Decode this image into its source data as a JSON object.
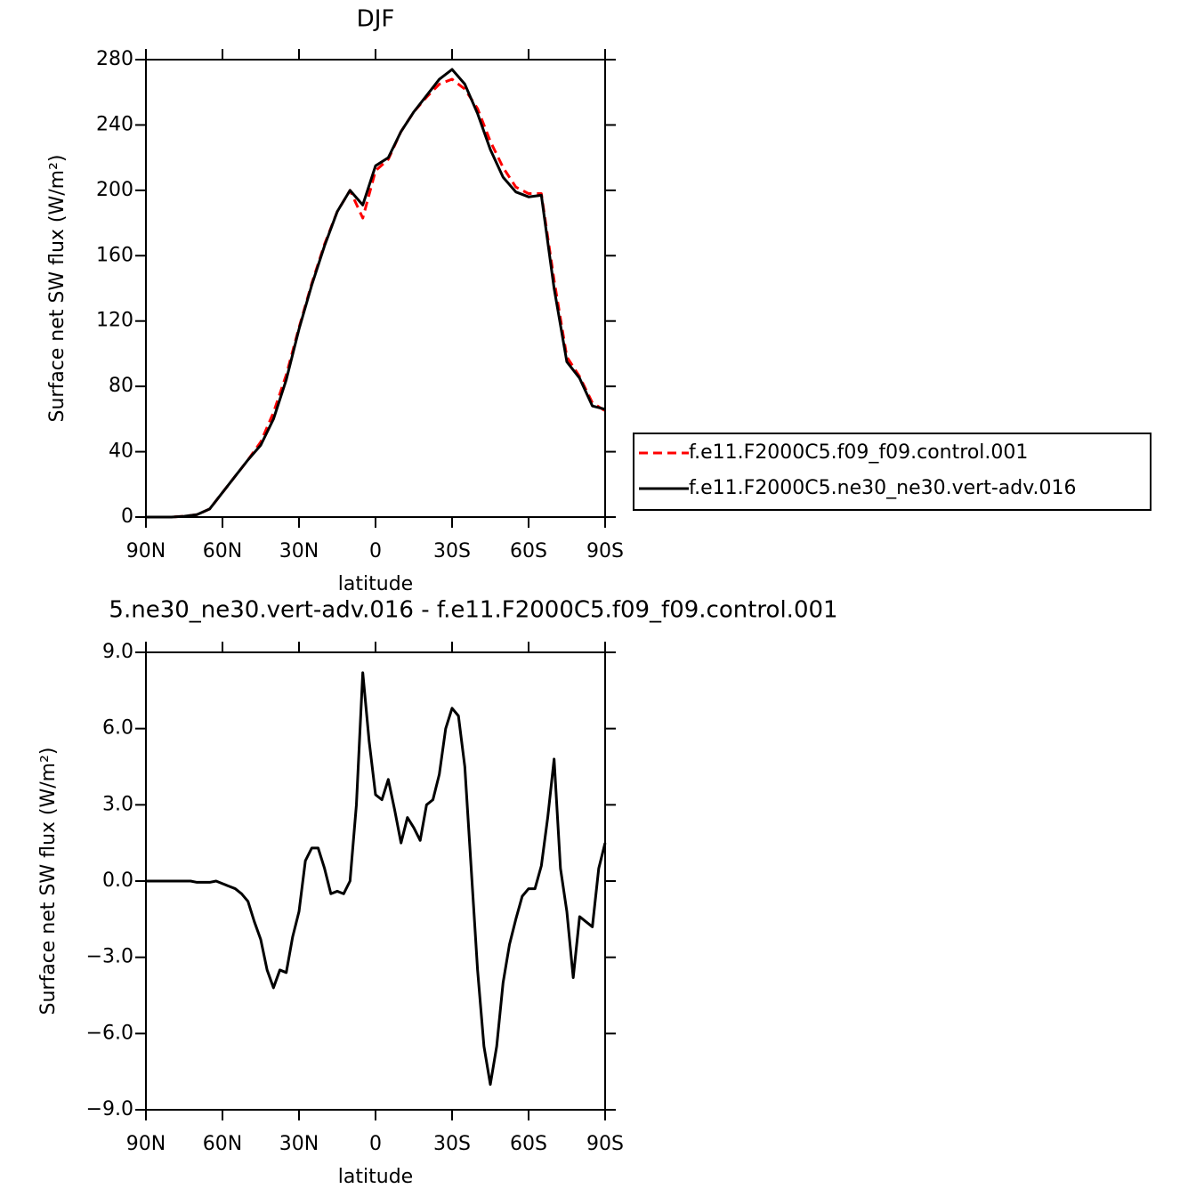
{
  "chart_data": [
    {
      "type": "line",
      "title": "DJF",
      "xlabel": "latitude",
      "ylabel": "Surface net SW flux (W/m²)",
      "xlim": [
        90,
        -90
      ],
      "xticks": [
        {
          "value": 90,
          "label": "90N"
        },
        {
          "value": 60,
          "label": "60N"
        },
        {
          "value": 30,
          "label": "30N"
        },
        0,
        {
          "value": -30,
          "label": "30S"
        },
        {
          "value": -60,
          "label": "60S"
        },
        {
          "value": -90,
          "label": "90S"
        }
      ],
      "ylim": [
        0,
        280
      ],
      "yticks": [
        0,
        40,
        80,
        120,
        160,
        200,
        240,
        280
      ],
      "legend": "right",
      "x": [
        90,
        85,
        80,
        75,
        70,
        65,
        60,
        55,
        50,
        45,
        40,
        35,
        30,
        25,
        20,
        15,
        10,
        5,
        0,
        -5,
        -10,
        -15,
        -20,
        -25,
        -30,
        -35,
        -40,
        -45,
        -50,
        -55,
        -60,
        -65,
        -70,
        -75,
        -80,
        -85,
        -90
      ],
      "series": [
        {
          "name": "f.e11.F2000C5.f09_f09.control.001",
          "color": "#ff0000",
          "dash": true,
          "values": [
            0,
            0,
            0,
            0.5,
            1.5,
            5,
            15,
            25,
            35,
            46,
            64,
            87,
            116,
            143,
            167,
            187,
            200,
            183,
            212,
            219,
            236,
            248,
            257,
            265,
            268,
            262,
            250,
            230,
            214,
            202,
            198,
            198,
            145,
            98,
            86,
            70,
            65
          ]
        },
        {
          "name": "f.e11.F2000C5.ne30_ne30.vert-adv.016",
          "color": "#000000",
          "dash": false,
          "values": [
            0,
            0,
            0,
            0.5,
            1.5,
            5,
            15,
            25,
            35,
            44,
            60,
            84,
            115,
            142,
            166,
            187,
            200,
            191,
            215,
            220,
            236,
            248,
            258,
            268,
            274,
            265,
            247,
            225,
            208,
            199,
            196,
            197,
            140,
            95,
            85,
            68,
            66
          ]
        }
      ]
    },
    {
      "type": "line",
      "title": "5.ne30_ne30.vert-adv.016 - f.e11.F2000C5.f09_f09.control.001",
      "xlabel": "latitude",
      "ylabel": "Surface net SW flux (W/m²)",
      "xlim": [
        90,
        -90
      ],
      "xticks": [
        {
          "value": 90,
          "label": "90N"
        },
        {
          "value": 60,
          "label": "60N"
        },
        {
          "value": 30,
          "label": "30N"
        },
        0,
        {
          "value": -30,
          "label": "30S"
        },
        {
          "value": -60,
          "label": "60S"
        },
        {
          "value": -90,
          "label": "90S"
        }
      ],
      "ylim": [
        -9,
        9
      ],
      "yticks": [
        {
          "value": -9,
          "label": "−9.0"
        },
        {
          "value": -6,
          "label": "−6.0"
        },
        {
          "value": -3,
          "label": "−3.0"
        },
        {
          "value": 0,
          "label": "0.0"
        },
        {
          "value": 3,
          "label": "3.0"
        },
        {
          "value": 6,
          "label": "6.0"
        },
        {
          "value": 9,
          "label": "9.0"
        }
      ],
      "color": "#000000",
      "x": [
        90,
        87.5,
        85,
        82.5,
        80,
        77.5,
        75,
        72.5,
        70,
        67.5,
        65,
        62.5,
        60,
        57.5,
        55,
        52.5,
        50,
        47.5,
        45,
        42.5,
        40,
        37.5,
        35,
        32.5,
        30,
        27.5,
        25,
        22.5,
        20,
        17.5,
        15,
        12.5,
        10,
        7.5,
        5,
        2.5,
        0,
        -2.5,
        -5,
        -7.5,
        -10,
        -12.5,
        -15,
        -17.5,
        -20,
        -22.5,
        -25,
        -27.5,
        -30,
        -32.5,
        -35,
        -37.5,
        -40,
        -42.5,
        -45,
        -47.5,
        -50,
        -52.5,
        -55,
        -57.5,
        -60,
        -62.5,
        -65,
        -67.5,
        -70,
        -72.5,
        -75,
        -77.5,
        -80,
        -82.5,
        -85,
        -87.5,
        -90
      ],
      "values": [
        0,
        0,
        0,
        0,
        0,
        0,
        0,
        0,
        -0.05,
        -0.05,
        -0.05,
        0,
        -0.1,
        -0.2,
        -0.3,
        -0.5,
        -0.8,
        -1.6,
        -2.3,
        -3.5,
        -4.2,
        -3.5,
        -3.6,
        -2.2,
        -1.2,
        0.8,
        1.3,
        1.3,
        0.5,
        -0.5,
        -0.4,
        -0.5,
        0,
        3,
        8.2,
        5.5,
        3.4,
        3.2,
        4,
        2.8,
        1.5,
        2.5,
        2.1,
        1.6,
        3,
        3.2,
        4.2,
        6,
        6.8,
        6.5,
        4.5,
        0.5,
        -3.5,
        -6.5,
        -8,
        -6.5,
        -4,
        -2.5,
        -1.5,
        -0.6,
        -0.3,
        -0.3,
        0.6,
        2.5,
        4.8,
        0.5,
        -1.2,
        -3.8,
        -1.4,
        -1.6,
        -1.8,
        0.5,
        1.5
      ]
    }
  ]
}
